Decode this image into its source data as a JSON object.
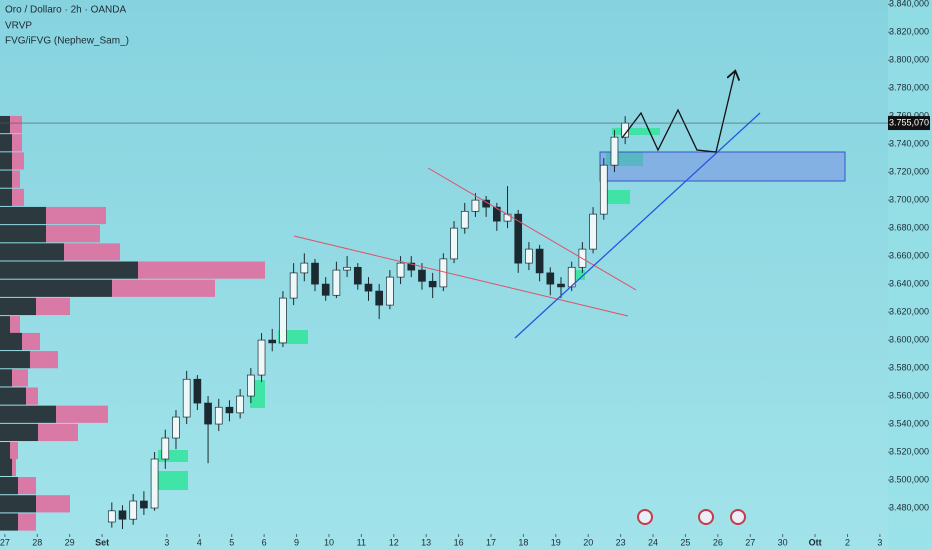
{
  "chart_data": {
    "type": "candlestick",
    "header": [
      "Oro / Dollaro · 2h · OANDA",
      "VRVP",
      "FVG/iFVG (Nephew_Sam_)"
    ],
    "x": [
      3.3,
      3.63,
      3.96,
      4.29,
      4.62,
      4.95,
      5.28,
      5.61,
      5.94,
      6.27,
      6.6,
      6.93,
      7.26,
      7.59,
      7.92,
      8.25,
      8.58,
      8.91,
      9.24,
      9.57,
      9.9,
      10.23,
      10.56,
      10.89,
      11.22,
      11.55,
      11.88,
      12.21,
      12.54,
      12.87,
      13.2,
      13.53,
      13.86,
      14.19,
      14.52,
      14.85,
      15.18,
      15.51,
      15.84,
      16.17,
      16.5,
      16.83,
      17.16,
      17.49,
      17.82,
      18.15,
      18.48,
      18.81,
      19.14
    ],
    "open": [
      3470000,
      3478000,
      3472000,
      3485000,
      3480000,
      3515000,
      3530000,
      3545000,
      3572000,
      3555000,
      3540000,
      3552000,
      3548000,
      3560000,
      3575000,
      3600000,
      3598000,
      3630000,
      3648000,
      3655000,
      3640000,
      3632000,
      3650000,
      3652000,
      3640000,
      3635000,
      3625000,
      3645000,
      3655000,
      3650000,
      3642000,
      3638000,
      3658000,
      3680000,
      3692000,
      3700000,
      3695000,
      3685000,
      3690000,
      3655000,
      3665000,
      3648000,
      3640000,
      3638000,
      3652000,
      3665000,
      3690000,
      3725000,
      3745000
    ],
    "high": [
      3484000,
      3482000,
      3490000,
      3492000,
      3520000,
      3536000,
      3550000,
      3578000,
      3575000,
      3560000,
      3558000,
      3557000,
      3565000,
      3580000,
      3605000,
      3608000,
      3635000,
      3655000,
      3662000,
      3658000,
      3645000,
      3656000,
      3660000,
      3655000,
      3645000,
      3640000,
      3650000,
      3660000,
      3660000,
      3655000,
      3648000,
      3662000,
      3685000,
      3698000,
      3705000,
      3703000,
      3698000,
      3710000,
      3693000,
      3670000,
      3668000,
      3652000,
      3645000,
      3656000,
      3670000,
      3695000,
      3730000,
      3750000,
      3760000
    ],
    "low": [
      3466000,
      3465000,
      3468000,
      3475000,
      3478000,
      3508000,
      3522000,
      3540000,
      3550000,
      3512000,
      3535000,
      3542000,
      3544000,
      3555000,
      3570000,
      3592000,
      3595000,
      3625000,
      3642000,
      3635000,
      3628000,
      3630000,
      3645000,
      3636000,
      3628000,
      3615000,
      3622000,
      3640000,
      3645000,
      3636000,
      3630000,
      3635000,
      3655000,
      3676000,
      3688000,
      3688000,
      3678000,
      3680000,
      3648000,
      3650000,
      3642000,
      3632000,
      3630000,
      3635000,
      3648000,
      3662000,
      3686000,
      3720000,
      3740000
    ],
    "close": [
      3478000,
      3472000,
      3485000,
      3480000,
      3515000,
      3530000,
      3545000,
      3572000,
      3555000,
      3540000,
      3552000,
      3548000,
      3560000,
      3575000,
      3600000,
      3598000,
      3630000,
      3648000,
      3655000,
      3640000,
      3632000,
      3650000,
      3652000,
      3640000,
      3635000,
      3625000,
      3645000,
      3655000,
      3650000,
      3642000,
      3638000,
      3658000,
      3680000,
      3692000,
      3700000,
      3695000,
      3685000,
      3690000,
      3655000,
      3665000,
      3648000,
      3640000,
      3638000,
      3652000,
      3665000,
      3690000,
      3725000,
      3745000,
      3755000
    ],
    "up_color": "#eef8f8",
    "down_color": "#1b2a31",
    "ylim": [
      3450000,
      3843000
    ],
    "yticks": [
      {
        "value": 3480000,
        "label": "3.480,000"
      },
      {
        "value": 3500000,
        "label": "3.500,000"
      },
      {
        "value": 3520000,
        "label": "3.520,000"
      },
      {
        "value": 3540000,
        "label": "3.540,000"
      },
      {
        "value": 3560000,
        "label": "3.560,000"
      },
      {
        "value": 3580000,
        "label": "3.580,000"
      },
      {
        "value": 3600000,
        "label": "3.600,000"
      },
      {
        "value": 3620000,
        "label": "3.620,000"
      },
      {
        "value": 3640000,
        "label": "3.640,000"
      },
      {
        "value": 3660000,
        "label": "3.660,000"
      },
      {
        "value": 3680000,
        "label": "3.680,000"
      },
      {
        "value": 3700000,
        "label": "3.700,000"
      },
      {
        "value": 3720000,
        "label": "3.720,000"
      },
      {
        "value": 3740000,
        "label": "3.740,000"
      },
      {
        "value": 3760000,
        "label": "3.760,000"
      },
      {
        "value": 3780000,
        "label": "3.780,000"
      },
      {
        "value": 3800000,
        "label": "3.800,000"
      },
      {
        "value": 3820000,
        "label": "3.820,000"
      },
      {
        "value": 3840000,
        "label": "3.840,000"
      }
    ],
    "xlim": [
      -0.15,
      27.25
    ],
    "xticks": [
      {
        "value": 0,
        "label": "27"
      },
      {
        "value": 1,
        "label": "28"
      },
      {
        "value": 2,
        "label": "29"
      },
      {
        "value": 3,
        "label": "Set"
      },
      {
        "value": 5,
        "label": "3"
      },
      {
        "value": 6,
        "label": "4"
      },
      {
        "value": 7,
        "label": "5"
      },
      {
        "value": 8,
        "label": "6"
      },
      {
        "value": 9,
        "label": "9"
      },
      {
        "value": 10,
        "label": "10"
      },
      {
        "value": 11,
        "label": "11"
      },
      {
        "value": 12,
        "label": "12"
      },
      {
        "value": 13,
        "label": "13"
      },
      {
        "value": 14,
        "label": "16"
      },
      {
        "value": 15,
        "label": "17"
      },
      {
        "value": 16,
        "label": "18"
      },
      {
        "value": 17,
        "label": "19"
      },
      {
        "value": 18,
        "label": "20"
      },
      {
        "value": 19,
        "label": "23"
      },
      {
        "value": 20,
        "label": "24"
      },
      {
        "value": 21,
        "label": "25"
      },
      {
        "value": 22,
        "label": "26"
      },
      {
        "value": 23,
        "label": "27"
      },
      {
        "value": 24,
        "label": "30"
      },
      {
        "value": 25,
        "label": "Ott"
      },
      {
        "value": 26,
        "label": "2"
      },
      {
        "value": 27,
        "label": "3"
      }
    ],
    "last_price": {
      "value": 3755070,
      "label": "3.755,070"
    },
    "volume_profile": {
      "levels": [
        3754000,
        3741000,
        3728000,
        3715000,
        3702000,
        3689000,
        3676000,
        3663000,
        3650000,
        3637000,
        3624000,
        3611000,
        3599000,
        3586000,
        3573000,
        3560000,
        3547000,
        3534000,
        3521000,
        3509000,
        3496000,
        3483000,
        3470000
      ],
      "buy": [
        10,
        12,
        12,
        12,
        12,
        46,
        46,
        64,
        138,
        112,
        36,
        10,
        22,
        30,
        12,
        26,
        56,
        38,
        10,
        12,
        18,
        36,
        18
      ],
      "sell": [
        12,
        10,
        12,
        8,
        12,
        60,
        54,
        56,
        127,
        103,
        34,
        10,
        18,
        28,
        16,
        12,
        52,
        40,
        8,
        4,
        18,
        34,
        18
      ],
      "buy_color": "#2c3a40",
      "sell_color": "#d97aa6"
    }
  }
}
